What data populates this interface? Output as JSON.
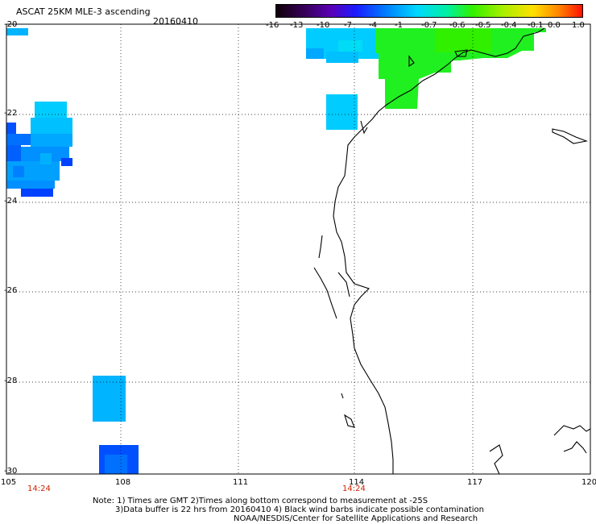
{
  "header": {
    "title": "ASCAT 25KM MLE-3 ascending",
    "date": "20160410"
  },
  "colorbar": {
    "labels": [
      "-16",
      "-13",
      "-10",
      "-7",
      "-4",
      "-1",
      "-0.7",
      "-0.6",
      "-0.5",
      "-0.4",
      "-0.1",
      "0.0",
      "1.0"
    ],
    "colors": [
      "#1a0010",
      "#3a0060",
      "#5a00b0",
      "#2020ff",
      "#0070ff",
      "#00b0ff",
      "#00e8f0",
      "#00f080",
      "#40f000",
      "#b0f000",
      "#ffe000",
      "#ff9000",
      "#ff2000"
    ]
  },
  "axes": {
    "lat_labels": [
      "-20",
      "-22",
      "-24",
      "-26",
      "-28",
      "-30"
    ],
    "lon_labels": [
      "105",
      "108",
      "111",
      "114",
      "117",
      "120"
    ],
    "time_labels": [
      "14:24",
      "14:24"
    ]
  },
  "notes": {
    "line1": "Note: 1) Times are GMT 2)Times along bottom correspond to measurement at -25S",
    "line2": "3)Data buffer is 22 hrs from 20160410 4) Black wind barbs indicate possible contamination",
    "line3": "NOAA/NESDIS/Center for Satellite Applications and Research"
  },
  "palette": {
    "light_blue": "#00ccff",
    "sky_blue": "#00b4ff",
    "mid_blue": "#0090ff",
    "deep_blue": "#0040ff",
    "cyan": "#00e0f0",
    "green": "#20f020"
  }
}
